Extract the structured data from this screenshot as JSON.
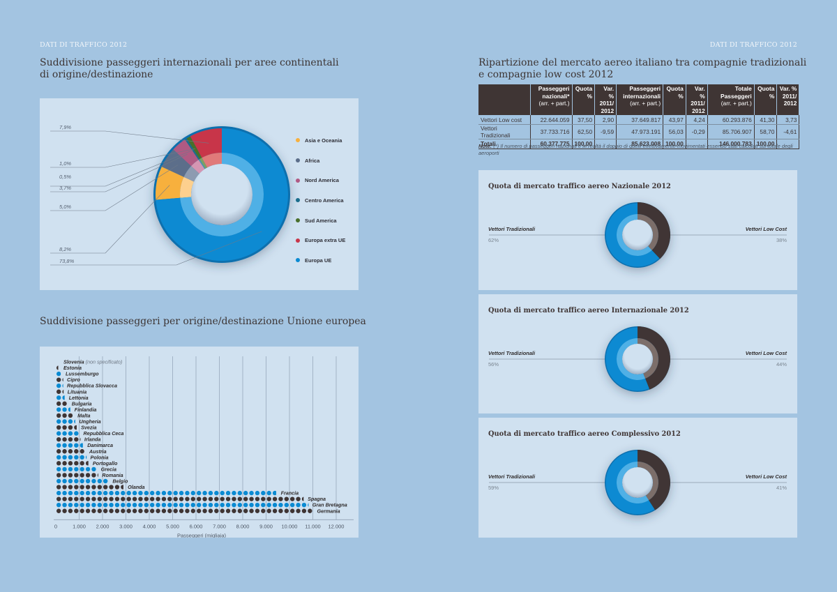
{
  "header": {
    "left_running_head": "DATI DI TRAFFICO 2012",
    "right_running_head": "DATI DI TRAFFICO 2012"
  },
  "colors": {
    "page_bg": "#a3c4e1",
    "panel_bg": "#d0e1f0",
    "brown": "#3f3534",
    "blue": "#0a8ad2",
    "light_blue": "#4fb0e6"
  },
  "chart_data": [
    {
      "id": "continental",
      "type": "pie",
      "title": "Suddivisione passeggeri internazionali per aree continentali di origine/destinazione",
      "title_line1": "Suddivisione passeggeri internazionali per aree continentali",
      "title_line2": "di origine/destinazione",
      "legend_position": "right",
      "slices": [
        {
          "name": "Asia e Oceania",
          "value": 8.2,
          "label": "8,2%",
          "color": "#f7b03e",
          "inner": "#fdd08e"
        },
        {
          "name": "Africa",
          "value": 5.0,
          "label": "5,0%",
          "color": "#5c6e8a",
          "inner": "#8d9bb1"
        },
        {
          "name": "Nord America",
          "value": 3.7,
          "label": "3,7%",
          "color": "#b05a83",
          "inner": "#d596b3"
        },
        {
          "name": "Centro America",
          "value": 0.5,
          "label": "0,5%",
          "color": "#1a6d8c",
          "inner": "#4a97b0"
        },
        {
          "name": "Sud America",
          "value": 1.0,
          "label": "1,0%",
          "color": "#4a6f2c",
          "inner": "#7fa060"
        },
        {
          "name": "Europa extra UE",
          "value": 7.9,
          "label": "7,9%",
          "color": "#c8364a",
          "inner": "#e07a7a"
        },
        {
          "name": "Europa UE",
          "value": 73.8,
          "label": "73,8%",
          "color": "#0a8ad2",
          "inner": "#4fb0e6"
        }
      ]
    },
    {
      "id": "eu_countries",
      "type": "bar",
      "subtype": "dot-bar",
      "title": "Suddivisione passeggeri per origine/destinazione Unione europea",
      "xlabel": "Passeggeri (migliaia)",
      "ylabel": "",
      "xlim": [
        0,
        12000
      ],
      "xticks": [
        "0",
        "1.000",
        "2.000",
        "3.000",
        "4.000",
        "5.000",
        "6.000",
        "7.000",
        "8.000",
        "9.000",
        "10.000",
        "11.000",
        "12.000"
      ],
      "grid": true,
      "dot_unit": 250,
      "categories": [
        "Slovenia",
        "Estonia",
        "Lussemburgo",
        "Cipro",
        "Repubblica Slovacca",
        "Lituania",
        "Lettonia",
        "Bulgaria",
        "Finlandia",
        "Malta",
        "Ungheria",
        "Svezia",
        "Repubblica Ceca",
        "Irlanda",
        "Danimarca",
        "Austria",
        "Polonia",
        "Portogallo",
        "Grecia",
        "Romania",
        "Belgio",
        "Olanda",
        "Francia",
        "Spagna",
        "Gran Bretagna",
        "Germania"
      ],
      "category_notes": {
        "Slovenia": "(non specificato)"
      },
      "values": [
        0,
        100,
        240,
        300,
        300,
        320,
        380,
        500,
        620,
        750,
        820,
        900,
        1000,
        1040,
        1170,
        1250,
        1300,
        1400,
        1750,
        1800,
        2250,
        2900,
        9450,
        10600,
        10800,
        11000
      ]
    },
    {
      "id": "nazionale",
      "type": "pie",
      "title": "Quota di mercato traffico aereo Nazionale 2012",
      "slices": [
        {
          "name": "Vettori Low Cost",
          "value": 38,
          "label": "38%",
          "color": "#3f3534",
          "inner": "#7c6e6b"
        },
        {
          "name": "Vettori Tradizionali",
          "value": 62,
          "label": "62%",
          "color": "#0a8ad2",
          "inner": "#4fb0e6"
        }
      ]
    },
    {
      "id": "internazionale",
      "type": "pie",
      "title": "Quota di mercato traffico aereo Internazionale 2012",
      "slices": [
        {
          "name": "Vettori Low Cost",
          "value": 44,
          "label": "44%",
          "color": "#3f3534",
          "inner": "#7c6e6b"
        },
        {
          "name": "Vettori Tradizionali",
          "value": 56,
          "label": "56%",
          "color": "#0a8ad2",
          "inner": "#4fb0e6"
        }
      ]
    },
    {
      "id": "complessivo",
      "type": "pie",
      "title": "Quota di mercato traffico aereo Complessivo 2012",
      "slices": [
        {
          "name": "Vettori Low Cost",
          "value": 41,
          "label": "41%",
          "color": "#3f3534",
          "inner": "#7c6e6b"
        },
        {
          "name": "Vettori Tradizionali",
          "value": 59,
          "label": "59%",
          "color": "#0a8ad2",
          "inner": "#4fb0e6"
        }
      ]
    },
    {
      "id": "market_table",
      "type": "table",
      "title": "Ripartizione del mercato aereo italiano tra compagnie tradizionali e compagnie low cost 2012",
      "title_line1": "Ripartizione del mercato aereo italiano tra compagnie tradizionali",
      "title_line2": "e compagnie low cost 2012",
      "columns": [
        {
          "l1": "Passeggeri",
          "l2": "nazionali*",
          "l3": "(arr. + part.)"
        },
        {
          "l1": "Quota",
          "l2": "%",
          "l3": ""
        },
        {
          "l1": "Var. %",
          "l2": "2011/",
          "l3": "2012"
        },
        {
          "l1": "Passeggeri",
          "l2": "internazionali",
          "l3": "(arr. + part.)"
        },
        {
          "l1": "Quota",
          "l2": "%",
          "l3": ""
        },
        {
          "l1": "Var. %",
          "l2": "2011/",
          "l3": "2012"
        },
        {
          "l1": "Totale",
          "l2": "Passeggeri",
          "l3": "(arr. + part.)"
        },
        {
          "l1": "Quota",
          "l2": "%",
          "l3": ""
        },
        {
          "l1": "Var. %",
          "l2": "2011/",
          "l3": "2012"
        }
      ],
      "rows": [
        {
          "label": "Vettori Low cost",
          "cells": [
            "22.644.059",
            "37,50",
            "2,90",
            "37.649.817",
            "43,97",
            "4,24",
            "60.293.876",
            "41,30",
            "3,73"
          ]
        },
        {
          "label": "Vettori Tradizionali",
          "cells": [
            "37.733.716",
            "62,50",
            "-9,59",
            "47.973.191",
            "56,03",
            "-0,29",
            "85.706.907",
            "58,70",
            "-4,61"
          ]
        },
        {
          "label": "Totali",
          "cells": [
            "60.377.775",
            "100,00",
            "",
            "85.623.008",
            "100,00",
            "",
            "146.000.783",
            "100,00",
            ""
          ]
        }
      ],
      "note_label": "Note:",
      "note_text": "(*) Il numero di passeggeri nazionali è in realtà il doppio di quelli effettivamente movimentati essendo stati calcolati sul totale degli aeroporti"
    }
  ]
}
